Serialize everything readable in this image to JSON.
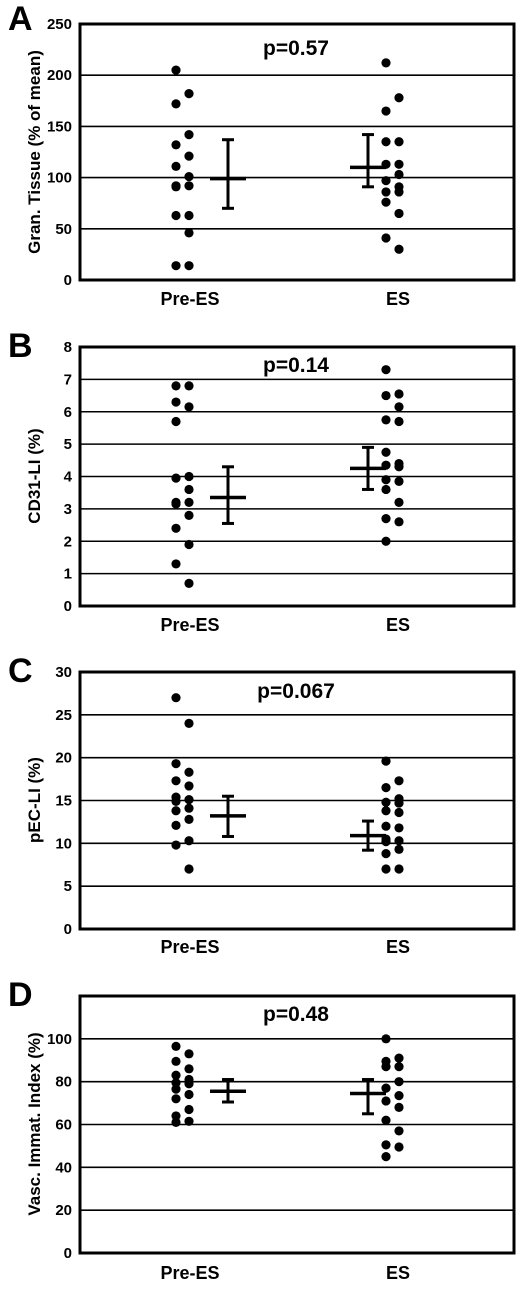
{
  "chart_data": [
    {
      "type": "scatter",
      "panel": "A",
      "ylabel": "Gran. Tissue (% of mean)",
      "annotation": "p=0.57",
      "ylim": [
        0,
        250
      ],
      "yticks": [
        0,
        50,
        100,
        150,
        200,
        250
      ],
      "categories": [
        "Pre-ES",
        "ES"
      ],
      "grid": true,
      "series": [
        {
          "category": "Pre-ES",
          "points": [
            205,
            182,
            172,
            142,
            132,
            121,
            111,
            101,
            92,
            92,
            91,
            63,
            63,
            46,
            14,
            14
          ],
          "mean": 99,
          "upper": 137,
          "lower": 70
        },
        {
          "category": "ES",
          "points": [
            212,
            178,
            165,
            135,
            135,
            113,
            113,
            103,
            97,
            91,
            86,
            86,
            76,
            65,
            41,
            30
          ],
          "mean": 110,
          "upper": 142,
          "lower": 91
        }
      ]
    },
    {
      "type": "scatter",
      "panel": "B",
      "ylabel": "CD31-LI (%)",
      "annotation": "p=0.14",
      "ylim": [
        0,
        8
      ],
      "yticks": [
        0,
        1,
        2,
        3,
        4,
        5,
        6,
        7,
        8
      ],
      "categories": [
        "Pre-ES",
        "ES"
      ],
      "grid": true,
      "series": [
        {
          "category": "Pre-ES",
          "points": [
            6.8,
            6.8,
            6.3,
            6.15,
            5.7,
            4.0,
            3.95,
            3.6,
            3.2,
            3.2,
            3.15,
            2.8,
            2.4,
            1.9,
            1.3,
            0.7
          ],
          "mean": 3.35,
          "upper": 4.3,
          "lower": 2.55
        },
        {
          "category": "ES",
          "points": [
            7.3,
            6.55,
            6.5,
            6.15,
            5.75,
            5.7,
            4.75,
            4.4,
            4.35,
            4.3,
            3.9,
            3.85,
            3.6,
            3.2,
            2.7,
            2.6,
            2.0
          ],
          "mean": 4.25,
          "upper": 4.9,
          "lower": 3.6
        }
      ]
    },
    {
      "type": "scatter",
      "panel": "C",
      "ylabel": "pEC-LI (%)",
      "annotation": "p=0.067",
      "ylim": [
        0,
        30
      ],
      "yticks": [
        0,
        5,
        10,
        15,
        20,
        25,
        30
      ],
      "categories": [
        "Pre-ES",
        "ES"
      ],
      "grid": true,
      "series": [
        {
          "category": "Pre-ES",
          "points": [
            27,
            24,
            19.3,
            18.3,
            17.3,
            16.7,
            15.4,
            15.1,
            14.9,
            14.1,
            13.8,
            12.8,
            12.1,
            10.3,
            9.8,
            7.0
          ],
          "mean": 13.2,
          "upper": 15.5,
          "lower": 10.8
        },
        {
          "category": "ES",
          "points": [
            19.6,
            17.3,
            16.5,
            15.2,
            14.8,
            14.7,
            13.8,
            13.6,
            12.0,
            11.8,
            10.5,
            10.3,
            10.2,
            9.3,
            8.8,
            7.0,
            7.0
          ],
          "mean": 10.9,
          "upper": 12.6,
          "lower": 9.2
        }
      ]
    },
    {
      "type": "scatter",
      "panel": "D",
      "ylabel": "Vasc. Immat. Index (%)",
      "annotation": "p=0.48",
      "ylim": [
        0,
        120
      ],
      "yticks": [
        0,
        20,
        40,
        60,
        80,
        100
      ],
      "categories": [
        "Pre-ES",
        "ES"
      ],
      "grid": true,
      "series": [
        {
          "category": "Pre-ES",
          "points": [
            96.5,
            93,
            89.5,
            86,
            83,
            81,
            79.5,
            79,
            76.5,
            74,
            72,
            67,
            64,
            61.5,
            61
          ],
          "mean": 75.5,
          "upper": 81,
          "lower": 70.5
        },
        {
          "category": "ES",
          "points": [
            100,
            91,
            89.5,
            87,
            87,
            80,
            77,
            73.5,
            71,
            68,
            62,
            57,
            50.5,
            49.5,
            45
          ],
          "mean": 74.5,
          "upper": 81,
          "lower": 65
        }
      ]
    }
  ]
}
